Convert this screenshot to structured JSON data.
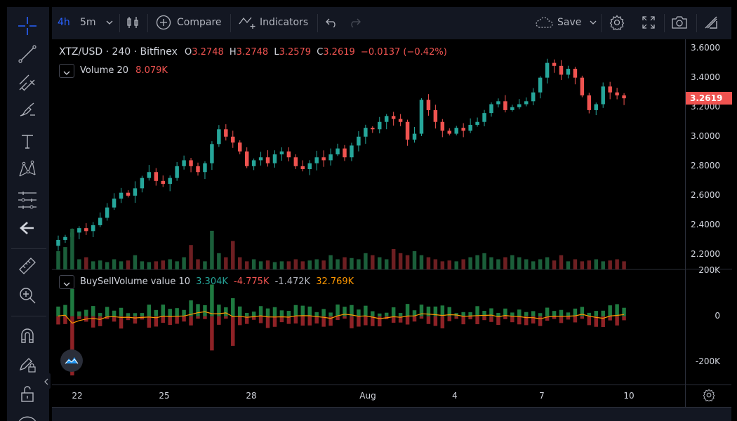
{
  "toolbar": {
    "interval_active": "4h",
    "interval_alt": "5m",
    "compare_label": "Compare",
    "indicators_label": "Indicators",
    "save_label": "Save"
  },
  "legend": {
    "symbol": "XTZ/USD · 240 · Bitfinex",
    "o_label": "O",
    "o_value": "3.2748",
    "h_label": "H",
    "h_value": "3.2748",
    "l_label": "L",
    "l_value": "3.2579",
    "c_label": "C",
    "c_value": "3.2619",
    "change": "−0.0137 (−0.42%)",
    "volume_name": "Volume 20",
    "volume_value": "8.079K",
    "bsv_name": "BuySellVolume value 10",
    "bsv_buy": "3.304K",
    "bsv_sell": "-4.775K",
    "bsv_net": "-1.472K",
    "bsv_avg": "32.769K"
  },
  "price_axis": {
    "ticks": [
      "3.6000",
      "3.4000",
      "3.2000",
      "3.0000",
      "2.8000",
      "2.6000",
      "2.4000",
      "2.2000"
    ],
    "current_price": "3.2619"
  },
  "indicator_axis": {
    "ticks": [
      "200K",
      "0",
      "-200K"
    ]
  },
  "time_axis": {
    "labels": [
      "22",
      "25",
      "28",
      "Aug",
      "4",
      "7",
      "10"
    ]
  },
  "colors": {
    "up": "#26a69a",
    "down": "#ef5350",
    "buy": "#26a69a",
    "sell": "#ef5350",
    "avg_line": "#ff9800",
    "panel": "#131722"
  },
  "chart_data": [
    {
      "type": "candlestick",
      "title": "XTZ/USD · 240 · Bitfinex",
      "ylim": [
        2.1,
        3.66
      ],
      "x_ticks": [
        "22",
        "25",
        "28",
        "Aug",
        "4",
        "7",
        "10"
      ],
      "y_ticks": [
        3.6,
        3.4,
        3.2,
        3.0,
        2.8,
        2.6,
        2.4,
        2.2
      ],
      "close_path": [
        2.3,
        2.32,
        2.35,
        2.38,
        2.36,
        2.4,
        2.45,
        2.52,
        2.58,
        2.62,
        2.6,
        2.65,
        2.72,
        2.76,
        2.7,
        2.68,
        2.72,
        2.8,
        2.84,
        2.8,
        2.76,
        2.82,
        2.95,
        3.05,
        3.0,
        2.96,
        2.9,
        2.8,
        2.84,
        2.86,
        2.82,
        2.88,
        2.9,
        2.86,
        2.8,
        2.78,
        2.82,
        2.86,
        2.84,
        2.88,
        2.92,
        2.86,
        2.94,
        3.0,
        3.06,
        3.05,
        3.1,
        3.14,
        3.12,
        3.1,
        2.98,
        3.02,
        3.25,
        3.18,
        3.1,
        3.04,
        3.02,
        3.06,
        3.04,
        3.08,
        3.1,
        3.16,
        3.22,
        3.24,
        3.18,
        3.2,
        3.22,
        3.24,
        3.3,
        3.4,
        3.5,
        3.48,
        3.42,
        3.46,
        3.4,
        3.28,
        3.18,
        3.22,
        3.34,
        3.3,
        3.28,
        3.26
      ]
    },
    {
      "type": "bar",
      "title": "Volume 20",
      "last_value": "8.079K",
      "values": [
        0.45,
        0.55,
        1.0,
        0.25,
        0.3,
        0.2,
        0.22,
        0.18,
        0.25,
        0.2,
        0.22,
        0.35,
        0.2,
        0.18,
        0.2,
        0.22,
        0.25,
        0.2,
        0.3,
        0.6,
        0.25,
        0.2,
        0.95,
        0.4,
        0.3,
        0.7,
        0.3,
        0.2,
        0.25,
        0.2,
        0.22,
        0.18,
        0.2,
        0.2,
        0.25,
        0.2,
        0.22,
        0.25,
        0.22,
        0.35,
        0.25,
        0.3,
        0.28,
        0.25,
        0.4,
        0.35,
        0.3,
        0.25,
        0.5,
        0.4,
        0.35,
        0.45,
        0.35,
        0.3,
        0.25,
        0.2,
        0.22,
        0.2,
        0.25,
        0.3,
        0.35,
        0.4,
        0.3,
        0.25,
        0.3,
        0.35,
        0.3,
        0.25,
        0.2,
        0.25,
        0.3,
        0.22,
        0.35,
        0.2,
        0.25,
        0.2,
        0.22,
        0.25,
        0.2,
        0.22,
        0.25,
        0.2
      ]
    },
    {
      "type": "bar",
      "title": "BuySellVolume value 10",
      "ylim": [
        -300,
        200
      ],
      "y_ticks": [
        "200K",
        "0",
        "-200K"
      ]
    }
  ]
}
